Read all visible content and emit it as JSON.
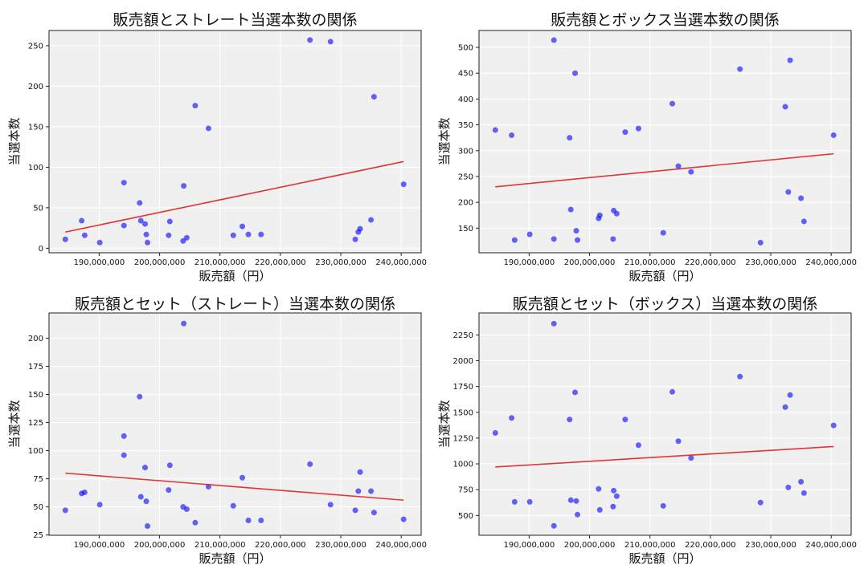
{
  "colors": {
    "point": "#0000ff",
    "trend": "#e02020",
    "plot_bg": "#f0f0f0",
    "grid": "#ffffff"
  },
  "chart_data": [
    {
      "type": "scatter",
      "title": "販売額とストレート当選本数の関係",
      "xlabel": "販売額（円）",
      "ylabel": "当選本数",
      "xlim": [
        181700000,
        243300000
      ],
      "ylim": [
        -5.6,
        268.8
      ],
      "xticks": [
        190000000,
        200000000,
        210000000,
        220000000,
        230000000,
        240000000
      ],
      "xtick_labels": [
        "190,000,000",
        "200,000,000",
        "210,000,000",
        "220,000,000",
        "230,000,000",
        "240,000,000"
      ],
      "yticks": [
        0,
        50,
        100,
        150,
        200,
        250
      ],
      "ytick_labels": [
        "0",
        "50",
        "100",
        "150",
        "200",
        "250"
      ],
      "grid": true,
      "x": [
        184400000,
        187100000,
        187600000,
        190100000,
        194100000,
        194100000,
        196700000,
        196900000,
        197600000,
        197800000,
        198000000,
        201500000,
        201700000,
        203900000,
        204000000,
        204500000,
        205900000,
        208100000,
        212200000,
        213700000,
        214700000,
        216800000,
        224900000,
        228300000,
        232400000,
        232900000,
        233200000,
        235000000,
        235500000,
        240400000
      ],
      "y": [
        11,
        34,
        16,
        7,
        81,
        28,
        56,
        34,
        30,
        17,
        7,
        16,
        33,
        9,
        77,
        13,
        176,
        148,
        16,
        27,
        17,
        17,
        257,
        255,
        11,
        20,
        24,
        35,
        187,
        79
      ],
      "trend": {
        "x": [
          184400000,
          240400000
        ],
        "y": [
          20,
          107
        ]
      }
    },
    {
      "type": "scatter",
      "title": "販売額とボックス当選本数の関係",
      "xlabel": "販売額（円）",
      "ylabel": "当選本数",
      "xlim": [
        181700000,
        243300000
      ],
      "ylim": [
        102.3,
        532.7
      ],
      "xticks": [
        190000000,
        200000000,
        210000000,
        220000000,
        230000000,
        240000000
      ],
      "xtick_labels": [
        "190,000,000",
        "200,000,000",
        "210,000,000",
        "220,000,000",
        "230,000,000",
        "240,000,000"
      ],
      "yticks": [
        150,
        200,
        250,
        300,
        350,
        400,
        450,
        500
      ],
      "ytick_labels": [
        "150",
        "200",
        "250",
        "300",
        "350",
        "400",
        "450",
        "500"
      ],
      "grid": true,
      "x": [
        184400000,
        187100000,
        187600000,
        190100000,
        194100000,
        194100000,
        196700000,
        196900000,
        197600000,
        197800000,
        198000000,
        201500000,
        201700000,
        203900000,
        204000000,
        204500000,
        205900000,
        208100000,
        212200000,
        213700000,
        214700000,
        216800000,
        224900000,
        228300000,
        232400000,
        232900000,
        233200000,
        235000000,
        235500000,
        240400000
      ],
      "y": [
        340,
        330,
        127,
        138,
        514,
        129,
        325,
        186,
        450,
        145,
        127,
        169,
        175,
        129,
        184,
        178,
        336,
        343,
        141,
        391,
        270,
        259,
        458,
        122,
        385,
        220,
        475,
        208,
        163,
        330
      ],
      "trend": {
        "x": [
          184400000,
          240400000
        ],
        "y": [
          230,
          294
        ]
      }
    },
    {
      "type": "scatter",
      "title": "販売額とセット（ストレート）当選本数の関係",
      "xlabel": "販売額（円）",
      "ylabel": "当選本数",
      "xlim": [
        181700000,
        243300000
      ],
      "ylim": [
        24.8,
        222.4
      ],
      "xticks": [
        190000000,
        200000000,
        210000000,
        220000000,
        230000000,
        240000000
      ],
      "xtick_labels": [
        "190,000,000",
        "200,000,000",
        "210,000,000",
        "220,000,000",
        "230,000,000",
        "240,000,000"
      ],
      "yticks": [
        25,
        50,
        75,
        100,
        125,
        150,
        175,
        200
      ],
      "ytick_labels": [
        "25",
        "50",
        "75",
        "100",
        "125",
        "150",
        "175",
        "200"
      ],
      "grid": true,
      "x": [
        184400000,
        187100000,
        187600000,
        190100000,
        194100000,
        194100000,
        196700000,
        196900000,
        197600000,
        197800000,
        198000000,
        201500000,
        201700000,
        203900000,
        204000000,
        204500000,
        205900000,
        208100000,
        212200000,
        213700000,
        214700000,
        216800000,
        224900000,
        228300000,
        232400000,
        232900000,
        233200000,
        235000000,
        235500000,
        240400000
      ],
      "y": [
        47,
        62,
        63,
        52,
        113,
        96,
        148,
        59,
        85,
        55,
        33,
        65,
        87,
        50,
        213,
        48,
        36,
        68,
        51,
        76,
        38,
        38,
        88,
        52,
        47,
        64,
        81,
        64,
        45,
        39
      ],
      "trend": {
        "x": [
          184400000,
          240400000
        ],
        "y": [
          80,
          56
        ]
      }
    },
    {
      "type": "scatter",
      "title": "販売額とセット（ボックス）当選本数の関係",
      "xlabel": "販売額（円）",
      "ylabel": "当選本数",
      "xlim": [
        181700000,
        243300000
      ],
      "ylim": [
        308,
        2462.7
      ],
      "xticks": [
        190000000,
        200000000,
        210000000,
        220000000,
        230000000,
        240000000
      ],
      "xtick_labels": [
        "190,000,000",
        "200,000,000",
        "210,000,000",
        "220,000,000",
        "230,000,000",
        "240,000,000"
      ],
      "yticks": [
        500,
        750,
        1000,
        1250,
        1500,
        1750,
        2000,
        2250
      ],
      "ytick_labels": [
        "500",
        "750",
        "1000",
        "1250",
        "1500",
        "1750",
        "2000",
        "2250"
      ],
      "grid": true,
      "x": [
        184400000,
        187100000,
        187600000,
        190100000,
        194100000,
        194100000,
        196700000,
        196900000,
        197600000,
        197800000,
        198000000,
        201500000,
        201700000,
        203900000,
        204000000,
        204500000,
        205900000,
        208100000,
        212200000,
        213700000,
        214700000,
        216800000,
        224900000,
        228300000,
        232400000,
        232900000,
        233200000,
        235000000,
        235500000,
        240400000
      ],
      "y": [
        1300,
        1445,
        632,
        632,
        2359,
        399,
        1430,
        648,
        1693,
        640,
        508,
        757,
        554,
        586,
        741,
        687,
        1430,
        1181,
        593,
        1698,
        1220,
        1057,
        1846,
        625,
        1550,
        772,
        1667,
        826,
        717,
        1373
      ],
      "trend": {
        "x": [
          184400000,
          240400000
        ],
        "y": [
          970,
          1168
        ]
      }
    }
  ]
}
